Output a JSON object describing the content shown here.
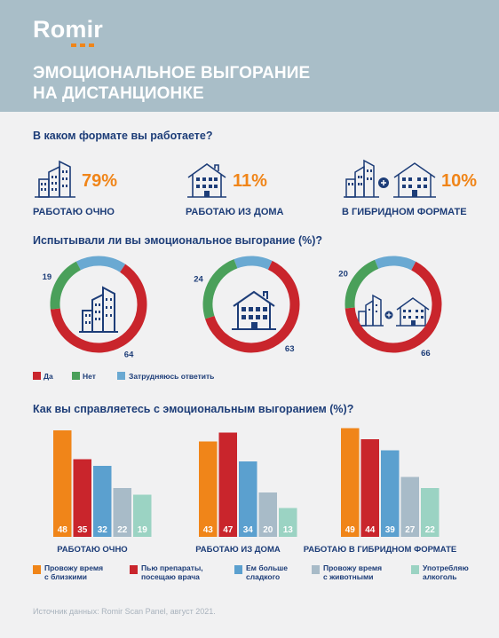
{
  "brand": {
    "logo_text": "Romir"
  },
  "title": {
    "line1": "ЭМОЦИОНАЛЬНОЕ ВЫГОРАНИЕ",
    "line2": "НА ДИСТАНЦИОНКЕ"
  },
  "section1": {
    "question": "В каком формате вы работаете?",
    "formats": [
      {
        "label": "РАБОТАЮ ОЧНО",
        "value": "79%",
        "icon": "office-building-icon"
      },
      {
        "label": "РАБОТАЮ ИЗ ДОМА",
        "value": "11%",
        "icon": "house-icon"
      },
      {
        "label": "В ГИБРИДНОМ ФОРМАТЕ",
        "value": "10%",
        "icon": "building-plus-house-icon"
      }
    ]
  },
  "section2": {
    "question": "Испытывали ли вы эмоциональное выгорание (%)?"
  },
  "section3": {
    "question": "Как вы справляетесь с эмоциональным выгоранием (%)?"
  },
  "source": "Источник данных: Romir Scan Panel, август 2021.",
  "colors": {
    "header": "#a9bec8",
    "orange": "#f08519",
    "red": "#c9252c",
    "green": "#4aa05a",
    "blue": "#6aa9d2",
    "steel": "#5ba0cf",
    "gray": "#a8bbc8",
    "teal": "#9bd3c3",
    "navy": "#1d3d78"
  },
  "chart_data": [
    {
      "type": "pie",
      "title": "Испытывали ли вы эмоциональное выгорание (%)?",
      "legend": [
        "Да",
        "Нет",
        "Затрудняюсь ответить"
      ],
      "colors": [
        "#c9252c",
        "#4aa05a",
        "#6aa9d2"
      ],
      "groups": [
        {
          "name": "РАБОТАЮ ОЧНО",
          "icon": "office-building-icon",
          "values": [
            64,
            19,
            17
          ]
        },
        {
          "name": "РАБОТАЮ ИЗ ДОМА",
          "icon": "house-icon",
          "values": [
            63,
            24,
            13
          ]
        },
        {
          "name": "В ГИБРИДНОМ ФОРМАТЕ",
          "icon": "building-plus-house-icon",
          "values": [
            66,
            20,
            14
          ]
        }
      ]
    },
    {
      "type": "bar",
      "title": "Как вы справляетесь с эмоциональным выгоранием (%)?",
      "categories": [
        "РАБОТАЮ ОЧНО",
        "РАБОТАЮ ИЗ ДОМА",
        "РАБОТАЮ В ГИБРИДНОМ ФОРМАТЕ"
      ],
      "series": [
        {
          "name": "Провожу время с близкими",
          "legend_lines": [
            "Провожу время",
            "с близкими"
          ],
          "color": "#f08519",
          "values": [
            48,
            43,
            49
          ]
        },
        {
          "name": "Пью препараты, посещаю врача",
          "legend_lines": [
            "Пью препараты,",
            "посещаю врача"
          ],
          "color": "#c9252c",
          "values": [
            35,
            47,
            44
          ]
        },
        {
          "name": "Ем больше сладкого",
          "legend_lines": [
            "Ем больше",
            "сладкого"
          ],
          "color": "#5ba0cf",
          "values": [
            32,
            34,
            39
          ]
        },
        {
          "name": "Провожу время с животными",
          "legend_lines": [
            "Провожу время",
            "с животными"
          ],
          "color": "#a8bbc8",
          "values": [
            22,
            20,
            27
          ]
        },
        {
          "name": "Употребляю алкоголь",
          "legend_lines": [
            "Употребляю",
            "алкоголь"
          ],
          "color": "#9bd3c3",
          "values": [
            19,
            13,
            22
          ]
        }
      ],
      "ylim": [
        0,
        50
      ]
    }
  ]
}
